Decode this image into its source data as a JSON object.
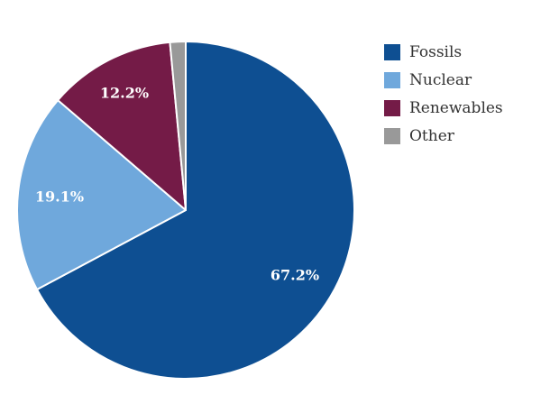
{
  "chart_data": {
    "type": "pie",
    "categories": [
      "Fossils",
      "Nuclear",
      "Renewables",
      "Other"
    ],
    "values": [
      67.2,
      19.1,
      12.2,
      1.5
    ],
    "data_labels": [
      "67.2%",
      "19.1%",
      "12.2%",
      ""
    ],
    "colors": [
      "#0e4f92",
      "#6fa8dc",
      "#741b47",
      "#999999"
    ],
    "legend": {
      "position": "right",
      "items": [
        {
          "label": "Fossils",
          "color": "#0e4f92"
        },
        {
          "label": "Nuclear",
          "color": "#6fa8dc"
        },
        {
          "label": "Renewables",
          "color": "#741b47"
        },
        {
          "label": "Other",
          "color": "#999999"
        }
      ]
    }
  }
}
